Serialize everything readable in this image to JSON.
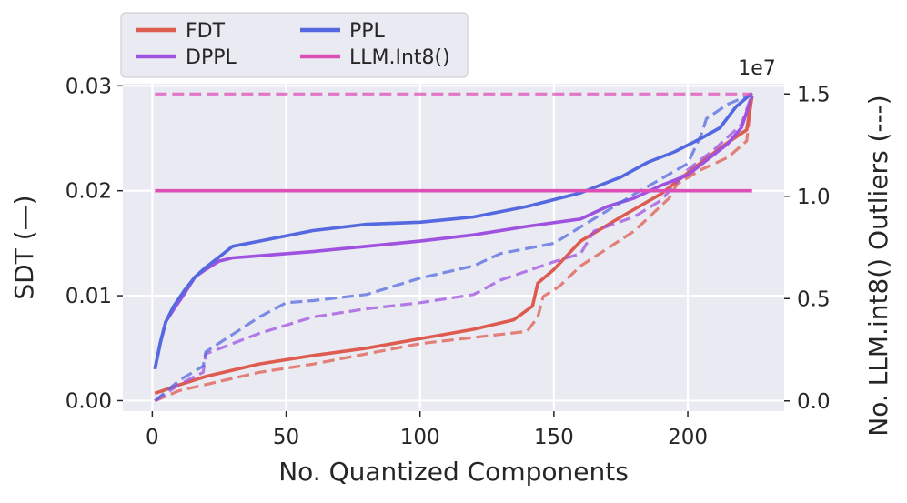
{
  "chart_data": {
    "type": "line",
    "xlabel": "No. Quantized Components",
    "ylabel": "SDT (—)",
    "y2label": "No. LLM.int8() Outliers (---)",
    "y2_offset_text": "1e7",
    "xlim": [
      -11,
      236
    ],
    "ylim": [
      -0.001,
      0.0302
    ],
    "y2lim": [
      -0.05,
      1.55
    ],
    "y2_scale": 10000000,
    "xticks": [
      0,
      50,
      100,
      150,
      200
    ],
    "xtick_labels": [
      "0",
      "50",
      "100",
      "150",
      "200"
    ],
    "yticks": [
      0.0,
      0.01,
      0.02,
      0.03
    ],
    "ytick_labels": [
      "0.00",
      "0.01",
      "0.02",
      "0.03"
    ],
    "y2ticks": [
      0.0,
      0.5,
      1.0,
      1.5
    ],
    "y2tick_labels": [
      "0.0",
      "0.5",
      "1.0",
      "1.5"
    ],
    "grid": true,
    "legend_position": "top-left, above plot",
    "colors": {
      "FDT": "#dd5b4f",
      "DPPL": "#9f52e0",
      "PPL": "#5469e0",
      "LLM.Int8()": "#dd4fb7",
      "background": "#eaeaf2",
      "grid": "#ffffff"
    },
    "legend": [
      "FDT",
      "DPPL",
      "PPL",
      "LLM.Int8()"
    ],
    "series": [
      {
        "name": "FDT",
        "axis": "left",
        "style": "solid",
        "x": [
          1,
          10,
          20,
          40,
          60,
          80,
          100,
          120,
          135,
          142,
          144,
          150,
          160,
          175,
          190,
          205,
          215,
          222,
          224
        ],
        "values": [
          0.0007,
          0.0015,
          0.0023,
          0.0035,
          0.0043,
          0.005,
          0.0059,
          0.0068,
          0.0077,
          0.009,
          0.0112,
          0.0125,
          0.0152,
          0.0175,
          0.0197,
          0.0227,
          0.0246,
          0.0258,
          0.029
        ]
      },
      {
        "name": "DPPL",
        "axis": "left",
        "style": "solid",
        "x": [
          1,
          3,
          5,
          8,
          12,
          16,
          20,
          25,
          30,
          40,
          60,
          80,
          100,
          120,
          140,
          160,
          170,
          180,
          190,
          200,
          210,
          215,
          220,
          224
        ],
        "values": [
          0.003,
          0.0055,
          0.0075,
          0.0087,
          0.0102,
          0.0118,
          0.0125,
          0.0133,
          0.0136,
          0.0138,
          0.0142,
          0.0147,
          0.0152,
          0.0158,
          0.0166,
          0.0173,
          0.0185,
          0.0193,
          0.0205,
          0.0215,
          0.0235,
          0.0245,
          0.026,
          0.029
        ]
      },
      {
        "name": "PPL",
        "axis": "left",
        "style": "solid",
        "x": [
          1,
          3,
          5,
          8,
          12,
          16,
          20,
          25,
          30,
          40,
          60,
          80,
          100,
          120,
          140,
          160,
          175,
          185,
          195,
          205,
          212,
          218,
          224
        ],
        "values": [
          0.003,
          0.0055,
          0.0075,
          0.009,
          0.0105,
          0.0118,
          0.0127,
          0.0137,
          0.0147,
          0.0152,
          0.0162,
          0.0168,
          0.017,
          0.0175,
          0.0185,
          0.0198,
          0.0213,
          0.0227,
          0.0237,
          0.025,
          0.026,
          0.028,
          0.0293
        ]
      },
      {
        "name": "FDT (outliers)",
        "axis": "right",
        "style": "dashed",
        "x": [
          1,
          10,
          20,
          40,
          60,
          80,
          100,
          120,
          140,
          144,
          146,
          152,
          160,
          180,
          193,
          196,
          205,
          215,
          222,
          224
        ],
        "values": [
          0.0,
          0.05,
          0.08,
          0.14,
          0.18,
          0.23,
          0.28,
          0.31,
          0.34,
          0.41,
          0.51,
          0.56,
          0.66,
          0.83,
          0.99,
          1.06,
          1.13,
          1.19,
          1.27,
          1.5
        ]
      },
      {
        "name": "DPPL (outliers)",
        "axis": "right",
        "style": "dashed",
        "x": [
          1,
          10,
          19,
          20,
          40,
          60,
          80,
          100,
          120,
          130,
          150,
          160,
          165,
          180,
          190,
          200,
          210,
          220,
          224
        ],
        "values": [
          0.0,
          0.08,
          0.14,
          0.23,
          0.33,
          0.41,
          0.45,
          0.48,
          0.52,
          0.59,
          0.68,
          0.72,
          0.83,
          0.9,
          0.98,
          1.13,
          1.23,
          1.35,
          1.5
        ]
      },
      {
        "name": "PPL (outliers)",
        "axis": "right",
        "style": "dashed",
        "x": [
          1,
          10,
          19,
          20,
          40,
          50,
          60,
          80,
          100,
          120,
          130,
          150,
          165,
          180,
          200,
          205,
          207,
          215,
          224
        ],
        "values": [
          0.0,
          0.1,
          0.17,
          0.24,
          0.41,
          0.48,
          0.49,
          0.52,
          0.6,
          0.66,
          0.72,
          0.77,
          0.89,
          1.01,
          1.16,
          1.3,
          1.38,
          1.45,
          1.5
        ]
      },
      {
        "name": "LLM.Int8()",
        "axis": "left",
        "style": "solid",
        "x": [
          1,
          224
        ],
        "values": [
          0.02,
          0.02
        ]
      },
      {
        "name": "LLM.Int8() (outliers)",
        "axis": "right",
        "style": "dashed",
        "x": [
          1,
          224
        ],
        "values": [
          1.5,
          1.5
        ]
      }
    ]
  }
}
